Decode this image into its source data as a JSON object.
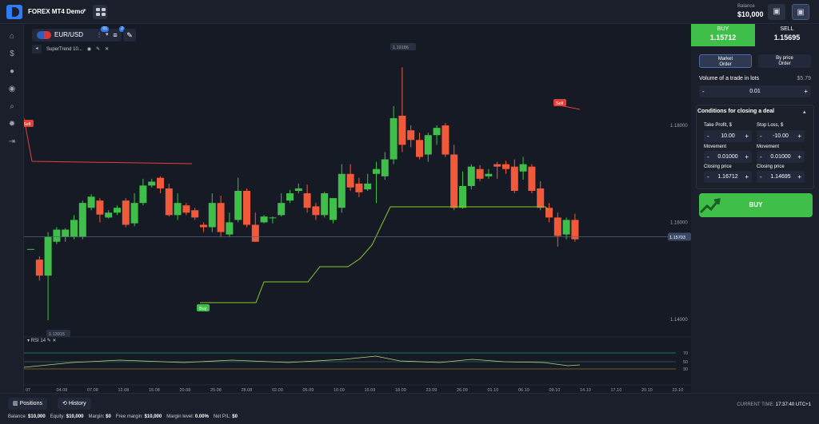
{
  "header": {
    "account_name": "FOREX MT4 Demo",
    "balance_label": "Balance",
    "balance_value": "$10,000"
  },
  "sidebar": {
    "items": [
      "trading-icon",
      "dollar-icon",
      "user-icon",
      "chat-icon",
      "search-icon",
      "settings-icon",
      "logout-icon"
    ]
  },
  "chart_toolbar": {
    "pair": "EUR/USD",
    "indicators_badge": "01",
    "settings_badge": "2",
    "indicator_name": "SuperTrend 10..."
  },
  "chart_data": {
    "type": "candlestick",
    "symbol": "EUR/USD",
    "x_ticks": [
      "07",
      "04.08",
      "07.08",
      "12.08",
      "15.08",
      "20.08",
      "25.08",
      "28.08",
      "02.09",
      "05.09",
      "10.09",
      "15.09",
      "18.09",
      "23.09",
      "26.09",
      "01.10",
      "06.10",
      "09.10",
      "14.10",
      "17.10",
      "20.10",
      "23.10"
    ],
    "y_ticks": [
      "1.18000",
      "1.16000",
      "1.14000"
    ],
    "ylim": [
      1.1375,
      1.196
    ],
    "current_price": "1.15703",
    "high_label": "1.19186",
    "low_label": "1.13915",
    "candles": [
      [
        1.1545,
        1.1545,
        1.1525,
        1.1525
      ],
      [
        1.1523,
        1.149,
        1.153,
        1.148
      ],
      [
        1.149,
        1.157,
        1.158,
        1.1398
      ],
      [
        1.156,
        1.1585,
        1.159,
        1.1555
      ],
      [
        1.157,
        1.1585,
        1.1588,
        1.156
      ],
      [
        1.157,
        1.1605,
        1.1615,
        1.1565
      ],
      [
        1.157,
        1.164,
        1.1645,
        1.1565
      ],
      [
        1.163,
        1.1653,
        1.1658,
        1.1625
      ],
      [
        1.1645,
        1.1616,
        1.165,
        1.16
      ],
      [
        1.161,
        1.162,
        1.1625,
        1.1608
      ],
      [
        1.162,
        1.163,
        1.1635,
        1.1615
      ],
      [
        1.1645,
        1.1595,
        1.165,
        1.159
      ],
      [
        1.1598,
        1.164,
        1.166,
        1.1592
      ],
      [
        1.164,
        1.1676,
        1.169,
        1.1635
      ],
      [
        1.1676,
        1.1684,
        1.169,
        1.1672
      ],
      [
        1.1692,
        1.167,
        1.1695,
        1.166
      ],
      [
        1.167,
        1.1615,
        1.168,
        1.1612
      ],
      [
        1.1615,
        1.164,
        1.166,
        1.1605
      ],
      [
        1.1635,
        1.162,
        1.164,
        1.1615
      ],
      [
        1.1625,
        1.161,
        1.163,
        1.1605
      ],
      [
        1.1595,
        1.159,
        1.16,
        1.158
      ],
      [
        1.159,
        1.164,
        1.166,
        1.158
      ],
      [
        1.164,
        1.158,
        1.1655,
        1.157
      ],
      [
        1.1575,
        1.16,
        1.162,
        1.157
      ],
      [
        1.1605,
        1.1665,
        1.1692,
        1.16
      ],
      [
        1.1665,
        1.1595,
        1.167,
        1.159
      ],
      [
        1.1595,
        1.156,
        1.162,
        1.156
      ],
      [
        1.16,
        1.1612,
        1.1615,
        1.1598
      ],
      [
        1.161,
        1.161,
        1.1612,
        1.1598
      ],
      [
        1.1615,
        1.164,
        1.166,
        1.1612
      ],
      [
        1.1645,
        1.166,
        1.1667,
        1.164
      ],
      [
        1.1665,
        1.167,
        1.168,
        1.166
      ],
      [
        1.166,
        1.163,
        1.1678,
        1.162
      ],
      [
        1.1633,
        1.1615,
        1.164,
        1.1605
      ],
      [
        1.1615,
        1.166,
        1.1663,
        1.161
      ],
      [
        1.1605,
        1.165,
        1.165,
        1.1598
      ],
      [
        1.163,
        1.17,
        1.172,
        1.162
      ],
      [
        1.17,
        1.1672,
        1.172,
        1.1665
      ],
      [
        1.168,
        1.1662,
        1.1692,
        1.1652
      ],
      [
        1.1668,
        1.168,
        1.17,
        1.1665
      ],
      [
        1.17,
        1.171,
        1.1725,
        1.164
      ],
      [
        1.1695,
        1.173,
        1.1745,
        1.1688
      ],
      [
        1.173,
        1.1815,
        1.184,
        1.172
      ],
      [
        1.182,
        1.176,
        1.192,
        1.1745
      ],
      [
        1.179,
        1.177,
        1.18,
        1.1755
      ],
      [
        1.177,
        1.1735,
        1.1785,
        1.173
      ],
      [
        1.174,
        1.178,
        1.1785,
        1.1725
      ],
      [
        1.178,
        1.1795,
        1.18,
        1.176
      ],
      [
        1.18,
        1.174,
        1.1805,
        1.1735
      ],
      [
        1.174,
        1.163,
        1.176,
        1.1625
      ],
      [
        1.163,
        1.1675,
        1.1705,
        1.1628
      ],
      [
        1.1675,
        1.1715,
        1.172,
        1.1668
      ],
      [
        1.171,
        1.169,
        1.1718,
        1.1685
      ],
      [
        1.1695,
        1.17,
        1.171,
        1.169
      ],
      [
        1.172,
        1.1715,
        1.1725,
        1.169
      ],
      [
        1.172,
        1.171,
        1.1727,
        1.17
      ],
      [
        1.1715,
        1.1665,
        1.173,
        1.166
      ],
      [
        1.1705,
        1.172,
        1.1735,
        1.1688
      ],
      [
        1.1715,
        1.1665,
        1.172,
        1.166
      ],
      [
        1.167,
        1.163,
        1.1685,
        1.1625
      ],
      [
        1.163,
        1.161,
        1.164,
        1.16
      ],
      [
        1.161,
        1.1572,
        1.162,
        1.155
      ],
      [
        1.1575,
        1.1605,
        1.161,
        1.1565
      ],
      [
        1.1605,
        1.1565,
        1.1618,
        1.156
      ]
    ],
    "supertrend_labels": [
      "Buy",
      "Sell",
      "Sell"
    ],
    "rsi": {
      "name": "RSI 14",
      "levels": [
        "70",
        "50",
        "30"
      ]
    }
  },
  "trade_panel": {
    "buy_label": "BUY",
    "buy_price": "1.15712",
    "sell_label": "SELL",
    "sell_price": "1.15695",
    "market_order_line1": "Market",
    "market_order_line2": "Order",
    "price_order_line1": "By price",
    "price_order_line2": "Order",
    "volume_label": "Volume of a trade in lots",
    "volume_amount": "$5.79",
    "volume_value": "0.01",
    "conditions_title": "Conditions for closing a deal",
    "take_profit_label": "Take Profit, $",
    "take_profit_value": "10.00",
    "stop_loss_label": "Stop Loss, $",
    "stop_loss_value": "-10.00",
    "movement_label": "Movement",
    "movement_tp_value": "0.01000",
    "movement_sl_value": "0.01000",
    "closing_price_label": "Closing price",
    "closing_tp_value": "1.16712",
    "closing_sl_value": "1.14695",
    "buy_button_label": "BUY"
  },
  "bottom": {
    "positions_tab": "Positions",
    "history_tab": "History",
    "balance": "Balance: ",
    "balance_val": "$10,000",
    "equity": "Equity: ",
    "equity_val": "$10,000",
    "margin": "Margin: ",
    "margin_val": "$0",
    "free_margin": "Free margin: ",
    "free_margin_val": "$10,000",
    "margin_level": "Margin level: ",
    "margin_level_val": "0.00%",
    "net_pl": "Net P/L: ",
    "net_pl_val": "$0",
    "current_time_label": "CURRENT TIME: ",
    "current_time_val": "17:37:40 UTC+1"
  },
  "colors": {
    "up": "#3fbf4a",
    "down": "#f05a3a",
    "supertrend_up": "#8ac926",
    "supertrend_down": "#e0413a",
    "rsi_line": "#b7d87a",
    "accent": "#2f7cf6"
  }
}
